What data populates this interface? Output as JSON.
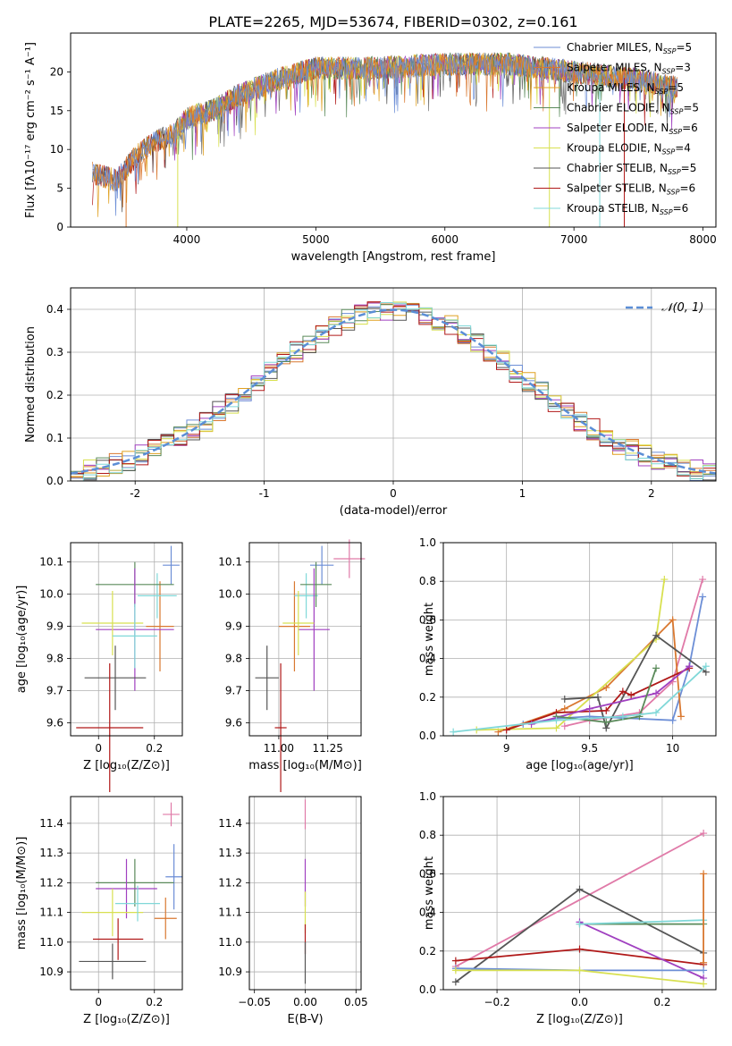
{
  "figure": {
    "title": "PLATE=2265, MJD=53674, FIBERID=0302, z=0.161"
  },
  "models": [
    {
      "name": "Chabrier MILES",
      "nssp": "5",
      "color": "#6c8ed6"
    },
    {
      "name": "Salpeter MILES",
      "nssp": "3",
      "color": "#d97830"
    },
    {
      "name": "Kroupa MILES",
      "nssp": "5",
      "color": "#e0a020"
    },
    {
      "name": "Chabrier ELODIE",
      "nssp": "5",
      "color": "#5a8a5a"
    },
    {
      "name": "Salpeter ELODIE",
      "nssp": "6",
      "color": "#a040c0"
    },
    {
      "name": "Kroupa ELODIE",
      "nssp": "4",
      "color": "#d8e050"
    },
    {
      "name": "Chabrier STELIB",
      "nssp": "5",
      "color": "#555555"
    },
    {
      "name": "Salpeter STELIB",
      "nssp": "6",
      "color": "#b01818"
    },
    {
      "name": "Kroupa STELIB",
      "nssp": "6",
      "color": "#80d8d8"
    }
  ],
  "chart_data": [
    {
      "id": "spectrum",
      "type": "line",
      "xlabel": "wavelength [Angstrom, rest frame]",
      "ylabel": "Flux [fλ10⁻¹⁷ erg cm⁻² s⁻¹ A⁻¹]",
      "xlim": [
        3100,
        8100
      ],
      "ylim": [
        0,
        25
      ],
      "xticks": [
        4000,
        5000,
        6000,
        7000,
        8000
      ],
      "yticks": [
        0,
        5,
        10,
        15,
        20
      ],
      "continuum": {
        "x": [
          3270,
          3450,
          3600,
          3750,
          3900,
          4000,
          4200,
          4400,
          4700,
          5000,
          5500,
          6000,
          6500,
          7000,
          7500,
          7800
        ],
        "y": [
          7,
          6,
          9,
          11,
          12,
          14,
          15,
          17,
          19,
          20.5,
          20.5,
          21,
          21,
          20,
          19,
          18
        ]
      },
      "legend_position": "upper right"
    },
    {
      "id": "residuals",
      "type": "step",
      "xlabel": "(data-model)/error",
      "ylabel": "Normed distribution",
      "xlim": [
        -2.5,
        2.5
      ],
      "ylim": [
        0,
        0.45
      ],
      "xticks": [
        -2,
        -1,
        0,
        1,
        2
      ],
      "yticks": [
        0,
        0.1,
        0.2,
        0.3,
        0.4
      ],
      "gaussian_label": "𝒩(0, 1)",
      "gaussian_color": "#5b8ed6",
      "grid": true
    },
    {
      "id": "age-vs-Z",
      "type": "errorbar",
      "xlabel": "Z [log₁₀(Z/Z⊙)]",
      "ylabel": "age  [log₁₀(age/yr)]",
      "xlim": [
        -0.1,
        0.3
      ],
      "ylim": [
        9.56,
        10.16
      ],
      "xticks": [
        0,
        0.2
      ],
      "yticks": [
        9.6,
        9.7,
        9.8,
        9.9,
        10.0,
        10.1
      ],
      "points": [
        {
          "x": 0.26,
          "y": 10.09,
          "xerr": 0.03,
          "yerr": 0.06
        },
        {
          "x": 0.22,
          "y": 9.9,
          "xerr": 0.05,
          "yerr": 0.14
        },
        {
          "x": 0.21,
          "y": 9.995,
          "xerr": 0.07,
          "yerr": 0.07
        },
        {
          "x": 0.13,
          "y": 10.03,
          "xerr": 0.14,
          "yerr": 0.07
        },
        {
          "x": 0.13,
          "y": 9.89,
          "xerr": 0.14,
          "yerr": 0.19
        },
        {
          "x": 0.05,
          "y": 9.91,
          "xerr": 0.11,
          "yerr": 0.1
        },
        {
          "x": 0.06,
          "y": 9.74,
          "xerr": 0.11,
          "yerr": 0.1
        },
        {
          "x": 0.04,
          "y": 9.585,
          "xerr": 0.12,
          "yerr": 0.2
        },
        {
          "x": 0.13,
          "y": 9.87,
          "xerr": 0.08,
          "yerr": 0.1
        }
      ],
      "colors": [
        "#6c8ed6",
        "#d97830",
        "#80d8d8",
        "#5a8a5a",
        "#a040c0",
        "#d8e050",
        "#555555",
        "#b01818",
        "#80d8d8"
      ],
      "grid": true
    },
    {
      "id": "age-vs-mass",
      "type": "errorbar",
      "xlabel": "mass [log₁₀(M/M⊙)]",
      "ylabel": "",
      "xlim": [
        10.85,
        11.42
      ],
      "ylim": [
        9.56,
        10.16
      ],
      "xticks": [
        11.0,
        11.25
      ],
      "xtick_labels": [
        "11.00",
        "11.25"
      ],
      "yticks": [
        9.6,
        9.7,
        9.8,
        9.9,
        10.0,
        10.1
      ],
      "points": [
        {
          "x": 11.22,
          "y": 10.09,
          "xerr": 0.06,
          "yerr": 0.06
        },
        {
          "x": 11.08,
          "y": 9.9,
          "xerr": 0.08,
          "yerr": 0.14
        },
        {
          "x": 11.14,
          "y": 9.995,
          "xerr": 0.06,
          "yerr": 0.07
        },
        {
          "x": 11.19,
          "y": 10.03,
          "xerr": 0.08,
          "yerr": 0.07
        },
        {
          "x": 11.18,
          "y": 9.89,
          "xerr": 0.08,
          "yerr": 0.19
        },
        {
          "x": 11.1,
          "y": 9.91,
          "xerr": 0.08,
          "yerr": 0.1
        },
        {
          "x": 10.94,
          "y": 9.74,
          "xerr": 0.06,
          "yerr": 0.1
        },
        {
          "x": 11.01,
          "y": 9.585,
          "xerr": 0.03,
          "yerr": 0.2
        },
        {
          "x": 11.36,
          "y": 10.11,
          "xerr": 0.08,
          "yerr": 0.06
        }
      ],
      "colors": [
        "#6c8ed6",
        "#d97830",
        "#80d8d8",
        "#5a8a5a",
        "#a040c0",
        "#d8e050",
        "#555555",
        "#b01818",
        "#e07aa8"
      ],
      "grid": true
    },
    {
      "id": "weight-vs-age",
      "type": "line",
      "xlabel": "age  [log₁₀(age/yr)]",
      "ylabel": "mass weight",
      "xlim": [
        8.62,
        10.26
      ],
      "ylim": [
        0,
        1
      ],
      "xticks": [
        9.0,
        9.5,
        10.0
      ],
      "yticks": [
        0,
        0.2,
        0.4,
        0.6,
        0.8,
        1.0
      ],
      "series": [
        {
          "color": "#e07aa8",
          "x": [
            9.35,
            9.5,
            9.8,
            10.0,
            10.18
          ],
          "y": [
            0.05,
            0.08,
            0.12,
            0.28,
            0.81
          ]
        },
        {
          "color": "#6c8ed6",
          "x": [
            9.1,
            9.3,
            9.5,
            10.0,
            10.1,
            10.18
          ],
          "y": [
            0.06,
            0.09,
            0.1,
            0.08,
            0.36,
            0.72
          ]
        },
        {
          "color": "#d97830",
          "x": [
            8.95,
            9.35,
            9.6,
            10.0,
            10.05
          ],
          "y": [
            0.02,
            0.14,
            0.25,
            0.6,
            0.1
          ]
        },
        {
          "color": "#d8e050",
          "x": [
            8.82,
            9.3,
            9.9,
            9.95
          ],
          "y": [
            0.03,
            0.04,
            0.5,
            0.81
          ]
        },
        {
          "color": "#555555",
          "x": [
            9.35,
            9.55,
            9.6,
            9.9,
            10.2
          ],
          "y": [
            0.19,
            0.2,
            0.04,
            0.52,
            0.33
          ]
        },
        {
          "color": "#b01818",
          "x": [
            9.0,
            9.3,
            9.6,
            9.7,
            9.75,
            10.1
          ],
          "y": [
            0.03,
            0.12,
            0.13,
            0.23,
            0.21,
            0.35
          ]
        },
        {
          "color": "#a040c0",
          "x": [
            9.15,
            9.5,
            9.9,
            10.1
          ],
          "y": [
            0.06,
            0.14,
            0.22,
            0.36
          ]
        },
        {
          "color": "#5a8a5a",
          "x": [
            9.3,
            9.6,
            9.8,
            9.9
          ],
          "y": [
            0.1,
            0.07,
            0.1,
            0.35
          ]
        },
        {
          "color": "#80d8d8",
          "x": [
            8.68,
            9.3,
            9.7,
            9.9,
            10.2
          ],
          "y": [
            0.02,
            0.08,
            0.1,
            0.12,
            0.36
          ]
        }
      ],
      "grid": true
    },
    {
      "id": "mass-vs-Z",
      "type": "errorbar",
      "xlabel": "Z [log₁₀(Z/Z⊙)]",
      "ylabel": "mass [log₁₀(M/M⊙)]",
      "xlim": [
        -0.1,
        0.3
      ],
      "ylim": [
        10.84,
        11.49
      ],
      "xticks": [
        0,
        0.2
      ],
      "yticks": [
        10.9,
        11.0,
        11.1,
        11.2,
        11.3,
        11.4
      ],
      "points": [
        {
          "x": 0.26,
          "y": 11.43,
          "xerr": 0.03,
          "yerr": 0.04
        },
        {
          "x": 0.27,
          "y": 11.22,
          "xerr": 0.03,
          "yerr": 0.11
        },
        {
          "x": 0.24,
          "y": 11.08,
          "xerr": 0.04,
          "yerr": 0.07
        },
        {
          "x": 0.13,
          "y": 11.2,
          "xerr": 0.14,
          "yerr": 0.08
        },
        {
          "x": 0.1,
          "y": 11.18,
          "xerr": 0.11,
          "yerr": 0.1
        },
        {
          "x": 0.05,
          "y": 11.1,
          "xerr": 0.11,
          "yerr": 0.08
        },
        {
          "x": 0.05,
          "y": 10.935,
          "xerr": 0.12,
          "yerr": 0.06
        },
        {
          "x": 0.07,
          "y": 11.01,
          "xerr": 0.09,
          "yerr": 0.07
        },
        {
          "x": 0.14,
          "y": 11.13,
          "xerr": 0.08,
          "yerr": 0.06
        }
      ],
      "colors": [
        "#e07aa8",
        "#6c8ed6",
        "#d97830",
        "#5a8a5a",
        "#a040c0",
        "#d8e050",
        "#555555",
        "#b01818",
        "#80d8d8"
      ],
      "grid": true
    },
    {
      "id": "mass-vs-EBV",
      "type": "errorbar",
      "xlabel": "E(B-V)",
      "ylabel": "",
      "xlim": [
        -0.055,
        0.055
      ],
      "ylim": [
        10.84,
        11.49
      ],
      "xticks": [
        -0.05,
        0,
        0.05
      ],
      "xtick_labels": [
        "−0.05",
        "0.00",
        "0.05"
      ],
      "yticks": [
        10.9,
        11.0,
        11.1,
        11.2,
        11.3,
        11.4
      ],
      "points": [
        {
          "x": 0,
          "y": 11.43,
          "xerr": 0,
          "yerr": 0.05
        },
        {
          "x": 0,
          "y": 11.2,
          "xerr": 0,
          "yerr": 0.08
        },
        {
          "x": 0,
          "y": 11.1,
          "xerr": 0,
          "yerr": 0.07
        },
        {
          "x": 0,
          "y": 11.01,
          "xerr": 0,
          "yerr": 0.05
        },
        {
          "x": 0,
          "y": 10.93,
          "xerr": 0,
          "yerr": 0.07
        }
      ],
      "colors": [
        "#e07aa8",
        "#a040c0",
        "#d8e050",
        "#b01818",
        "#555555"
      ],
      "grid": true
    },
    {
      "id": "weight-vs-Z",
      "type": "line",
      "xlabel": "Z [log₁₀(Z/Z⊙)]",
      "ylabel": "mass weight",
      "xlim": [
        -0.33,
        0.33
      ],
      "ylim": [
        0,
        1
      ],
      "xticks": [
        -0.2,
        0,
        0.2
      ],
      "xtick_labels": [
        "−0.2",
        "0.0",
        "0.2"
      ],
      "yticks": [
        0,
        0.2,
        0.4,
        0.6,
        0.8,
        1.0
      ],
      "series": [
        {
          "color": "#e07aa8",
          "x": [
            -0.3,
            0.3
          ],
          "y": [
            0.12,
            0.81
          ]
        },
        {
          "color": "#555555",
          "x": [
            -0.3,
            0.0,
            0.3
          ],
          "y": [
            0.04,
            0.52,
            0.19
          ]
        },
        {
          "color": "#b01818",
          "x": [
            -0.3,
            0.0,
            0.3
          ],
          "y": [
            0.15,
            0.21,
            0.13
          ]
        },
        {
          "color": "#5a8a5a",
          "x": [
            0.0,
            0.3
          ],
          "y": [
            0.34,
            0.34
          ]
        },
        {
          "color": "#a040c0",
          "x": [
            0.0,
            0.3
          ],
          "y": [
            0.35,
            0.06
          ]
        },
        {
          "color": "#6c8ed6",
          "x": [
            -0.3,
            0.0,
            0.3
          ],
          "y": [
            0.11,
            0.1,
            0.1
          ]
        },
        {
          "color": "#80d8d8",
          "x": [
            0.0,
            0.3
          ],
          "y": [
            0.34,
            0.36
          ]
        },
        {
          "color": "#d8e050",
          "x": [
            -0.3,
            0.0,
            0.3
          ],
          "y": [
            0.1,
            0.1,
            0.03
          ]
        },
        {
          "color": "#d97830",
          "x": [
            0.3,
            0.3
          ],
          "y": [
            0.14,
            0.6
          ]
        }
      ],
      "grid": true
    }
  ]
}
